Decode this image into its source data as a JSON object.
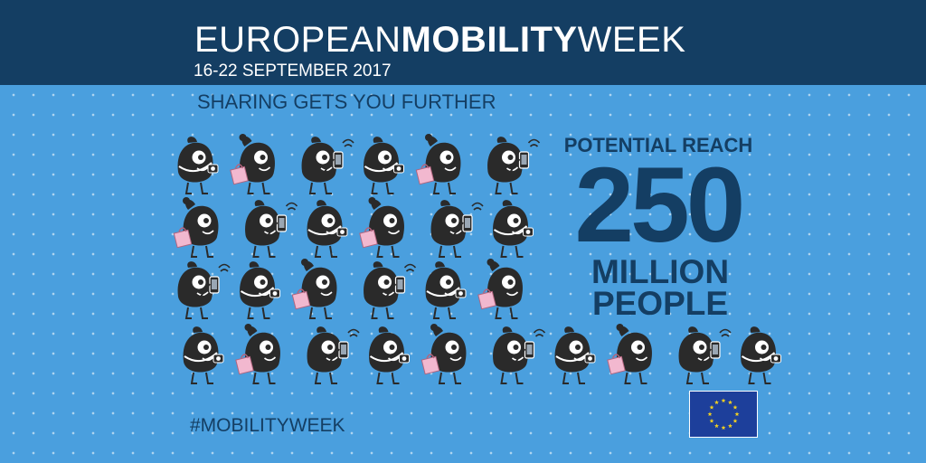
{
  "header": {
    "title_light": "EUROPEAN",
    "title_bold": "MOBILITY",
    "title_tail": "WEEK",
    "dates": "16-22 SEPTEMBER 2017"
  },
  "tagline": "SHARING GETS YOU FURTHER",
  "reach": {
    "label": "POTENTIAL REACH",
    "number": "250",
    "unit_line1": "MILLION",
    "unit_line2": "PEOPLE"
  },
  "hashtag": "#MOBILITYWEEK",
  "flag": {
    "icon": "eu-flag-icon",
    "background": "#1d3f9b",
    "stars": "#f4d21f",
    "star_count": 12
  },
  "colors": {
    "background": "#4a9fde",
    "header": "#143e63",
    "text_dark": "#143e63"
  },
  "crowd": {
    "icons": [
      "camera-figure-icon",
      "shopper-figure-icon",
      "phone-figure-icon"
    ],
    "rows": [
      [
        "camera",
        "shopper",
        "phone",
        "camera",
        "shopper",
        "phone"
      ],
      [
        "shopper",
        "phone",
        "camera",
        "shopper",
        "phone",
        "camera"
      ],
      [
        "phone",
        "camera",
        "shopper",
        "phone",
        "camera",
        "shopper"
      ],
      [
        "camera",
        "shopper",
        "phone",
        "camera",
        "shopper",
        "phone",
        "camera",
        "shopper",
        "phone",
        "camera"
      ]
    ]
  }
}
